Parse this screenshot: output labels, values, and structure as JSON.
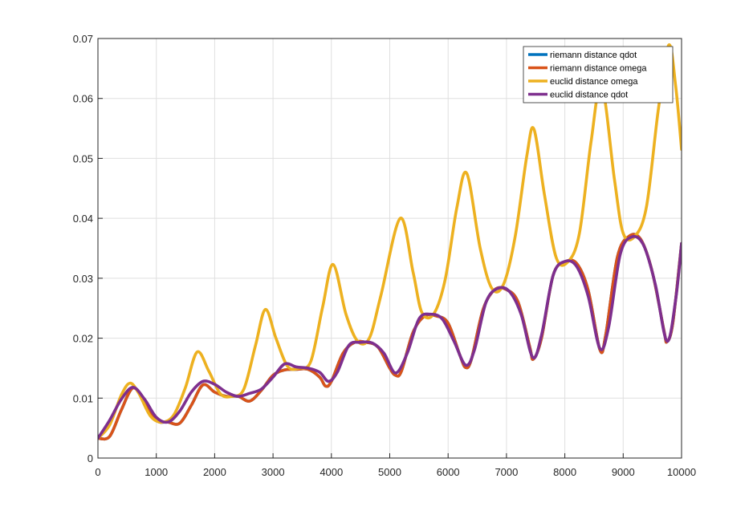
{
  "chart_data": {
    "type": "line",
    "title": "",
    "xlabel": "",
    "ylabel": "",
    "xlim": [
      0,
      10000
    ],
    "ylim": [
      0,
      0.07
    ],
    "xticks": [
      "0",
      "1000",
      "2000",
      "3000",
      "4000",
      "5000",
      "6000",
      "7000",
      "8000",
      "9000",
      "10000"
    ],
    "yticks": [
      "0",
      "0.01",
      "0.02",
      "0.03",
      "0.04",
      "0.05",
      "0.06",
      "0.07"
    ],
    "grid": true,
    "legend_position": "top-right",
    "series": [
      {
        "name": "riemann distance qdot",
        "color": "#0072BD",
        "points": [
          [
            0,
            0.0033
          ],
          [
            200,
            0.0036
          ],
          [
            400,
            0.008
          ],
          [
            600,
            0.0117
          ],
          [
            800,
            0.0095
          ],
          [
            1000,
            0.0063
          ],
          [
            1200,
            0.006
          ],
          [
            1400,
            0.0058
          ],
          [
            1600,
            0.0088
          ],
          [
            1800,
            0.0122
          ],
          [
            2000,
            0.011
          ],
          [
            2200,
            0.0103
          ],
          [
            2400,
            0.0103
          ],
          [
            2600,
            0.0095
          ],
          [
            2800,
            0.0113
          ],
          [
            3000,
            0.0138
          ],
          [
            3200,
            0.0147
          ],
          [
            3400,
            0.0148
          ],
          [
            3600,
            0.0148
          ],
          [
            3800,
            0.0135
          ],
          [
            3900,
            0.012
          ],
          [
            4000,
            0.0128
          ],
          [
            4200,
            0.0175
          ],
          [
            4400,
            0.0193
          ],
          [
            4600,
            0.0193
          ],
          [
            4800,
            0.0185
          ],
          [
            5000,
            0.015
          ],
          [
            5100,
            0.0138
          ],
          [
            5200,
            0.0145
          ],
          [
            5400,
            0.021
          ],
          [
            5600,
            0.0237
          ],
          [
            5800,
            0.0237
          ],
          [
            6000,
            0.0225
          ],
          [
            6200,
            0.0172
          ],
          [
            6300,
            0.0151
          ],
          [
            6400,
            0.0165
          ],
          [
            6600,
            0.0248
          ],
          [
            6800,
            0.0281
          ],
          [
            7000,
            0.0281
          ],
          [
            7200,
            0.026
          ],
          [
            7400,
            0.0185
          ],
          [
            7460,
            0.0165
          ],
          [
            7600,
            0.02
          ],
          [
            7800,
            0.0305
          ],
          [
            8000,
            0.0327
          ],
          [
            8200,
            0.0325
          ],
          [
            8400,
            0.028
          ],
          [
            8600,
            0.0181
          ],
          [
            8700,
            0.0205
          ],
          [
            8900,
            0.0335
          ],
          [
            9100,
            0.037
          ],
          [
            9300,
            0.0365
          ],
          [
            9500,
            0.031
          ],
          [
            9700,
            0.0212
          ],
          [
            9750,
            0.0194
          ],
          [
            9850,
            0.0225
          ],
          [
            10000,
            0.0358
          ]
        ]
      },
      {
        "name": "riemann distance omega",
        "color": "#D95319",
        "points": [
          [
            0,
            0.0033
          ],
          [
            200,
            0.0036
          ],
          [
            400,
            0.008
          ],
          [
            600,
            0.0117
          ],
          [
            800,
            0.0095
          ],
          [
            1000,
            0.0063
          ],
          [
            1200,
            0.006
          ],
          [
            1400,
            0.0058
          ],
          [
            1600,
            0.0088
          ],
          [
            1800,
            0.0122
          ],
          [
            2000,
            0.011
          ],
          [
            2200,
            0.0103
          ],
          [
            2400,
            0.0103
          ],
          [
            2600,
            0.0095
          ],
          [
            2800,
            0.0113
          ],
          [
            3000,
            0.0138
          ],
          [
            3200,
            0.0147
          ],
          [
            3400,
            0.0148
          ],
          [
            3600,
            0.0148
          ],
          [
            3800,
            0.0135
          ],
          [
            3900,
            0.012
          ],
          [
            4000,
            0.0128
          ],
          [
            4200,
            0.0175
          ],
          [
            4400,
            0.0193
          ],
          [
            4600,
            0.0193
          ],
          [
            4800,
            0.0185
          ],
          [
            5000,
            0.015
          ],
          [
            5100,
            0.0138
          ],
          [
            5200,
            0.0145
          ],
          [
            5400,
            0.021
          ],
          [
            5600,
            0.0237
          ],
          [
            5800,
            0.0237
          ],
          [
            6000,
            0.0225
          ],
          [
            6200,
            0.0172
          ],
          [
            6300,
            0.0151
          ],
          [
            6400,
            0.0165
          ],
          [
            6600,
            0.0248
          ],
          [
            6800,
            0.0281
          ],
          [
            7000,
            0.0281
          ],
          [
            7200,
            0.026
          ],
          [
            7400,
            0.0185
          ],
          [
            7460,
            0.0165
          ],
          [
            7600,
            0.02
          ],
          [
            7800,
            0.0305
          ],
          [
            8000,
            0.0327
          ],
          [
            8200,
            0.0325
          ],
          [
            8400,
            0.028
          ],
          [
            8600,
            0.0181
          ],
          [
            8700,
            0.0205
          ],
          [
            8900,
            0.0335
          ],
          [
            9100,
            0.037
          ],
          [
            9300,
            0.0365
          ],
          [
            9500,
            0.031
          ],
          [
            9700,
            0.0212
          ],
          [
            9750,
            0.0194
          ],
          [
            9850,
            0.0225
          ],
          [
            10000,
            0.0358
          ]
        ]
      },
      {
        "name": "euclid distance omega",
        "color": "#EDB120",
        "points": [
          [
            0,
            0.0033
          ],
          [
            200,
            0.0055
          ],
          [
            400,
            0.0105
          ],
          [
            550,
            0.0125
          ],
          [
            700,
            0.0108
          ],
          [
            900,
            0.007
          ],
          [
            1100,
            0.006
          ],
          [
            1300,
            0.0072
          ],
          [
            1500,
            0.0118
          ],
          [
            1700,
            0.0177
          ],
          [
            1900,
            0.0145
          ],
          [
            2100,
            0.0107
          ],
          [
            2300,
            0.0103
          ],
          [
            2500,
            0.0115
          ],
          [
            2700,
            0.0188
          ],
          [
            2870,
            0.0248
          ],
          [
            3050,
            0.02
          ],
          [
            3250,
            0.0153
          ],
          [
            3450,
            0.015
          ],
          [
            3650,
            0.0162
          ],
          [
            3850,
            0.0252
          ],
          [
            4030,
            0.0323
          ],
          [
            4250,
            0.024
          ],
          [
            4450,
            0.0195
          ],
          [
            4650,
            0.02
          ],
          [
            4850,
            0.0272
          ],
          [
            5180,
            0.04
          ],
          [
            5400,
            0.031
          ],
          [
            5550,
            0.0243
          ],
          [
            5750,
            0.024
          ],
          [
            5950,
            0.0298
          ],
          [
            6150,
            0.0418
          ],
          [
            6320,
            0.0475
          ],
          [
            6550,
            0.035
          ],
          [
            6750,
            0.0283
          ],
          [
            6950,
            0.029
          ],
          [
            7150,
            0.037
          ],
          [
            7350,
            0.0505
          ],
          [
            7470,
            0.0549
          ],
          [
            7650,
            0.044
          ],
          [
            7850,
            0.0335
          ],
          [
            8050,
            0.0327
          ],
          [
            8250,
            0.0375
          ],
          [
            8450,
            0.0528
          ],
          [
            8630,
            0.0623
          ],
          [
            8850,
            0.0465
          ],
          [
            9000,
            0.0375
          ],
          [
            9200,
            0.037
          ],
          [
            9400,
            0.042
          ],
          [
            9600,
            0.058
          ],
          [
            9780,
            0.0689
          ],
          [
            9900,
            0.062
          ],
          [
            10000,
            0.0515
          ]
        ]
      },
      {
        "name": "euclid distance qdot",
        "color": "#7E2F8E",
        "points": [
          [
            0,
            0.0033
          ],
          [
            200,
            0.0063
          ],
          [
            400,
            0.0098
          ],
          [
            600,
            0.0118
          ],
          [
            800,
            0.0098
          ],
          [
            1000,
            0.0068
          ],
          [
            1200,
            0.006
          ],
          [
            1400,
            0.0078
          ],
          [
            1600,
            0.011
          ],
          [
            1800,
            0.0128
          ],
          [
            2000,
            0.0123
          ],
          [
            2200,
            0.011
          ],
          [
            2400,
            0.0103
          ],
          [
            2600,
            0.0108
          ],
          [
            2800,
            0.0115
          ],
          [
            3000,
            0.0135
          ],
          [
            3200,
            0.0157
          ],
          [
            3400,
            0.0152
          ],
          [
            3600,
            0.015
          ],
          [
            3800,
            0.0143
          ],
          [
            3950,
            0.0128
          ],
          [
            4100,
            0.0143
          ],
          [
            4300,
            0.0188
          ],
          [
            4500,
            0.0193
          ],
          [
            4700,
            0.0192
          ],
          [
            4900,
            0.0175
          ],
          [
            5100,
            0.0142
          ],
          [
            5300,
            0.0175
          ],
          [
            5500,
            0.0232
          ],
          [
            5700,
            0.024
          ],
          [
            5900,
            0.0232
          ],
          [
            6100,
            0.0195
          ],
          [
            6300,
            0.0155
          ],
          [
            6450,
            0.018
          ],
          [
            6650,
            0.026
          ],
          [
            6850,
            0.0283
          ],
          [
            7050,
            0.0278
          ],
          [
            7250,
            0.024
          ],
          [
            7450,
            0.0168
          ],
          [
            7600,
            0.0205
          ],
          [
            7800,
            0.0305
          ],
          [
            8000,
            0.0328
          ],
          [
            8200,
            0.032
          ],
          [
            8400,
            0.027
          ],
          [
            8600,
            0.0183
          ],
          [
            8750,
            0.0218
          ],
          [
            8950,
            0.034
          ],
          [
            9150,
            0.0369
          ],
          [
            9350,
            0.0355
          ],
          [
            9550,
            0.029
          ],
          [
            9750,
            0.0195
          ],
          [
            9900,
            0.0265
          ],
          [
            10000,
            0.0358
          ]
        ]
      }
    ]
  }
}
